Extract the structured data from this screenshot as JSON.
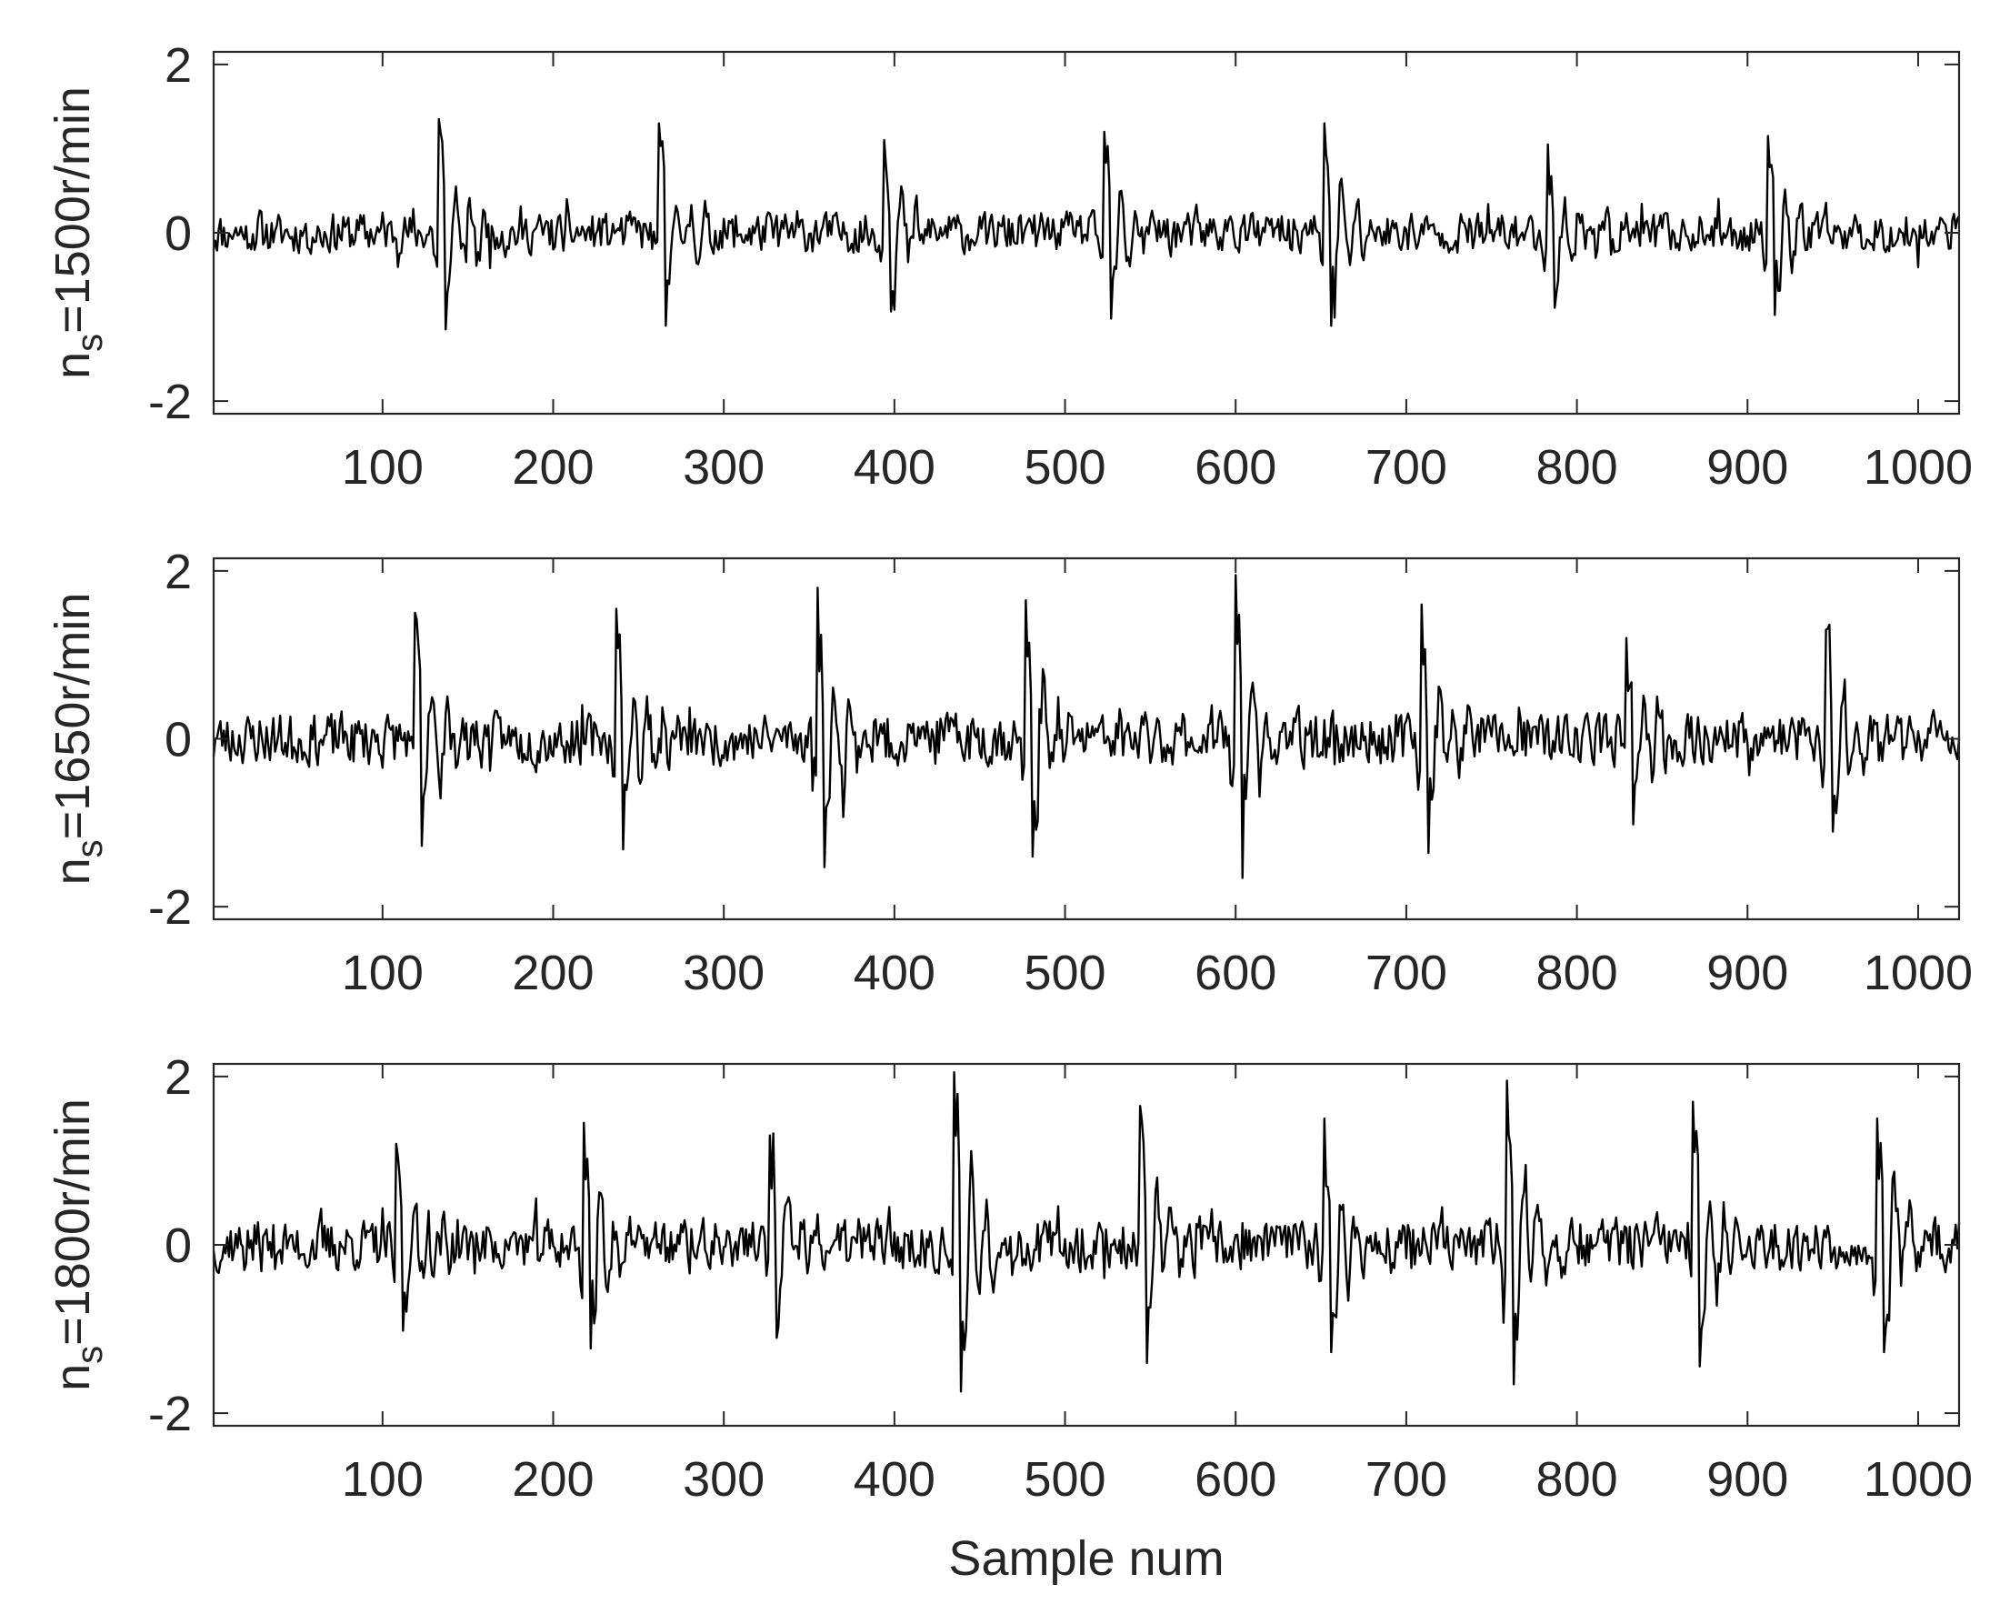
{
  "chart_data": [
    {
      "type": "line",
      "ylabel": {
        "main": "n",
        "sub": "s",
        "rest": "=1500r/min"
      },
      "xlim": [
        1,
        1024
      ],
      "ylim": [
        -2.15,
        2.15
      ],
      "xticks": [
        100,
        200,
        300,
        400,
        500,
        600,
        700,
        800,
        900,
        1000
      ],
      "yticks": [
        -2,
        0,
        2
      ],
      "series": [
        {
          "n_points": 1024,
          "noise_amplitude": 0.22,
          "seed": 11,
          "bursts": [
            {
              "x": 133,
              "amp": 1.35
            },
            {
              "x": 262,
              "amp": 1.3
            },
            {
              "x": 394,
              "amp": 1.1
            },
            {
              "x": 523,
              "amp": 1.2
            },
            {
              "x": 652,
              "amp": 1.3
            },
            {
              "x": 783,
              "amp": 1.05
            },
            {
              "x": 912,
              "amp": 1.15
            }
          ]
        }
      ]
    },
    {
      "type": "line",
      "ylabel": {
        "main": "n",
        "sub": "s",
        "rest": "=1650r/min"
      },
      "xlim": [
        1,
        1024
      ],
      "ylim": [
        -2.15,
        2.15
      ],
      "xticks": [
        100,
        200,
        300,
        400,
        500,
        600,
        700,
        800,
        900,
        1000
      ],
      "yticks": [
        -2,
        0,
        2
      ],
      "series": [
        {
          "n_points": 1024,
          "noise_amplitude": 0.28,
          "seed": 23,
          "bursts": [
            {
              "x": 119,
              "amp": 1.5
            },
            {
              "x": 237,
              "amp": 1.55
            },
            {
              "x": 355,
              "amp": 1.8
            },
            {
              "x": 477,
              "amp": 1.65
            },
            {
              "x": 600,
              "amp": 1.95
            },
            {
              "x": 709,
              "amp": 1.6
            },
            {
              "x": 829,
              "amp": 1.2
            },
            {
              "x": 946,
              "amp": 1.3
            }
          ]
        }
      ]
    },
    {
      "type": "line",
      "ylabel": {
        "main": "n",
        "sub": "s",
        "rest": "=1800r/min"
      },
      "xlabel": "Sample num",
      "xlim": [
        1,
        1024
      ],
      "ylim": [
        -2.15,
        2.15
      ],
      "xticks": [
        100,
        200,
        300,
        400,
        500,
        600,
        700,
        800,
        900,
        1000
      ],
      "yticks": [
        -2,
        0,
        2
      ],
      "series": [
        {
          "n_points": 1024,
          "noise_amplitude": 0.28,
          "seed": 37,
          "bursts": [
            {
              "x": 108,
              "amp": 1.2
            },
            {
              "x": 218,
              "amp": 1.45
            },
            {
              "x": 327,
              "amp": 1.3
            },
            {
              "x": 435,
              "amp": 2.05
            },
            {
              "x": 544,
              "amp": 1.65
            },
            {
              "x": 652,
              "amp": 1.5
            },
            {
              "x": 759,
              "amp": 1.95
            },
            {
              "x": 868,
              "amp": 1.7
            },
            {
              "x": 976,
              "amp": 1.5
            }
          ]
        }
      ]
    }
  ]
}
